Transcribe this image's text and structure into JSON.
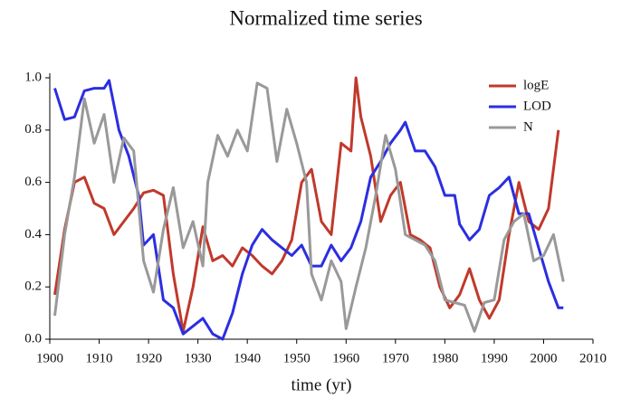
{
  "chart_data": {
    "type": "line",
    "title": "Normalized time series",
    "x_label": "time (yr)",
    "xlim": [
      1900,
      2010
    ],
    "xticks": [
      1900,
      1910,
      1920,
      1930,
      1940,
      1950,
      1960,
      1970,
      1980,
      1990,
      2000,
      2010
    ],
    "ylim": [
      0,
      1
    ],
    "yticks": [
      {
        "value": 0,
        "label": "0.0"
      },
      {
        "value": 0.2,
        "label": "0.2"
      },
      {
        "value": 0.4,
        "label": "0.4"
      },
      {
        "value": 0.6,
        "label": "0.6"
      },
      {
        "value": 0.8,
        "label": "0.8"
      },
      {
        "value": 1,
        "label": "1.0"
      }
    ],
    "grid": false,
    "legend": "upper right",
    "series": [
      {
        "name": "logE",
        "color": "#c0392b",
        "x": [
          1901,
          1903,
          1905,
          1907,
          1909,
          1911,
          1913,
          1915,
          1917,
          1919,
          1921,
          1923,
          1925,
          1927,
          1929,
          1931,
          1933,
          1935,
          1937,
          1939,
          1941,
          1943,
          1945,
          1947,
          1949,
          1951,
          1953,
          1955,
          1957,
          1959,
          1961,
          1962,
          1963,
          1965,
          1967,
          1969,
          1971,
          1973,
          1975,
          1977,
          1979,
          1981,
          1983,
          1985,
          1987,
          1989,
          1991,
          1993,
          1995,
          1997,
          1999,
          2001,
          2003
        ],
        "values": [
          0.17,
          0.42,
          0.6,
          0.62,
          0.52,
          0.5,
          0.4,
          0.45,
          0.5,
          0.56,
          0.57,
          0.55,
          0.25,
          0.03,
          0.2,
          0.43,
          0.3,
          0.32,
          0.28,
          0.35,
          0.32,
          0.28,
          0.25,
          0.3,
          0.38,
          0.6,
          0.65,
          0.45,
          0.4,
          0.75,
          0.72,
          1.0,
          0.85,
          0.7,
          0.45,
          0.55,
          0.6,
          0.4,
          0.38,
          0.35,
          0.2,
          0.12,
          0.17,
          0.27,
          0.15,
          0.08,
          0.15,
          0.4,
          0.6,
          0.45,
          0.42,
          0.5,
          0.8
        ]
      },
      {
        "name": "LOD",
        "color": "#2b2ee0",
        "x": [
          1901,
          1903,
          1905,
          1907,
          1909,
          1911,
          1912,
          1914,
          1916,
          1918,
          1919,
          1921,
          1923,
          1925,
          1927,
          1929,
          1931,
          1933,
          1935,
          1937,
          1939,
          1941,
          1943,
          1945,
          1947,
          1949,
          1951,
          1953,
          1955,
          1957,
          1959,
          1961,
          1963,
          1965,
          1967,
          1969,
          1971,
          1972,
          1974,
          1976,
          1978,
          1980,
          1982,
          1983,
          1985,
          1987,
          1989,
          1991,
          1993,
          1995,
          1997,
          1999,
          2001,
          2003,
          2004
        ],
        "values": [
          0.96,
          0.84,
          0.85,
          0.95,
          0.96,
          0.96,
          0.99,
          0.8,
          0.7,
          0.55,
          0.36,
          0.4,
          0.15,
          0.12,
          0.02,
          0.05,
          0.08,
          0.02,
          0.0,
          0.1,
          0.25,
          0.36,
          0.42,
          0.38,
          0.35,
          0.32,
          0.36,
          0.28,
          0.28,
          0.36,
          0.3,
          0.35,
          0.45,
          0.62,
          0.68,
          0.75,
          0.8,
          0.83,
          0.72,
          0.72,
          0.66,
          0.55,
          0.55,
          0.44,
          0.38,
          0.42,
          0.55,
          0.58,
          0.62,
          0.48,
          0.48,
          0.35,
          0.22,
          0.12,
          0.12
        ]
      },
      {
        "name": "N",
        "color": "#999999",
        "x": [
          1901,
          1903,
          1905,
          1907,
          1909,
          1911,
          1913,
          1915,
          1917,
          1919,
          1921,
          1923,
          1925,
          1927,
          1929,
          1931,
          1932,
          1934,
          1936,
          1938,
          1940,
          1942,
          1944,
          1946,
          1948,
          1950,
          1952,
          1953,
          1955,
          1957,
          1959,
          1960,
          1962,
          1964,
          1966,
          1968,
          1970,
          1972,
          1974,
          1976,
          1978,
          1980,
          1982,
          1984,
          1986,
          1988,
          1990,
          1992,
          1994,
          1996,
          1998,
          2000,
          2002,
          2004
        ],
        "values": [
          0.09,
          0.4,
          0.62,
          0.92,
          0.75,
          0.86,
          0.6,
          0.77,
          0.72,
          0.3,
          0.18,
          0.42,
          0.58,
          0.35,
          0.45,
          0.28,
          0.6,
          0.78,
          0.7,
          0.8,
          0.72,
          0.98,
          0.96,
          0.68,
          0.88,
          0.75,
          0.6,
          0.25,
          0.15,
          0.3,
          0.22,
          0.04,
          0.2,
          0.35,
          0.55,
          0.78,
          0.65,
          0.4,
          0.38,
          0.36,
          0.3,
          0.15,
          0.14,
          0.13,
          0.03,
          0.14,
          0.15,
          0.38,
          0.45,
          0.48,
          0.3,
          0.32,
          0.4,
          0.22
        ]
      }
    ]
  }
}
